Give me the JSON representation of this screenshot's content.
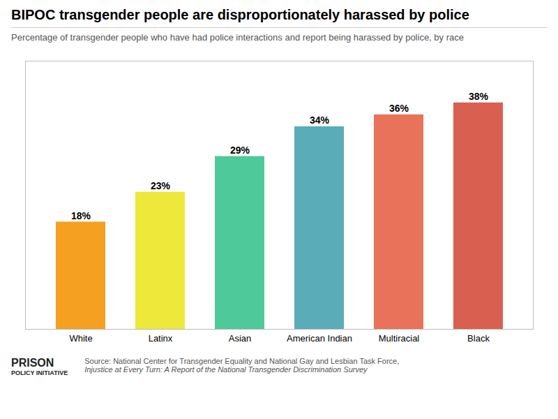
{
  "chart_data": {
    "type": "bar",
    "title": "BIPOC transgender people are disproportionately harassed by police",
    "subtitle": "Percentage of transgender people who have had police interactions and report being harassed by police, by race",
    "categories": [
      "White",
      "Latinx",
      "Asian",
      "American Indian",
      "Multiracial",
      "Black"
    ],
    "values": [
      18,
      23,
      29,
      34,
      36,
      38
    ],
    "value_labels": [
      "18%",
      "23%",
      "29%",
      "34%",
      "36%",
      "38%"
    ],
    "colors": [
      "#F5A020",
      "#EDE83A",
      "#4DC99A",
      "#5AACB8",
      "#E8735A",
      "#D95F50"
    ],
    "ylim": [
      0,
      45
    ],
    "data_labels": true,
    "tick_labels": "x",
    "grid": false,
    "annotations": [
      "PRISON",
      "POLICY INITIATIVE",
      "Source: National Center for Transgender Equality and National Gay and Lesbian Task Force,",
      "Injustice at Every Turn: A Report of the National Transgender Discrimination Survey"
    ]
  }
}
